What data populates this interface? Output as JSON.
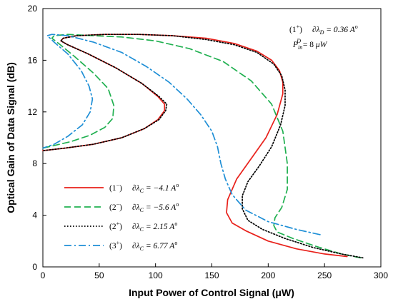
{
  "chart_data": {
    "type": "line",
    "title": "",
    "xlabel": "Input Power of Control Signal (μW)",
    "ylabel": "Optical Gain of Data Signal (dB)",
    "xlim": [
      0,
      300
    ],
    "ylim": [
      0,
      20
    ],
    "x_ticks": [
      "0",
      "50",
      "100",
      "150",
      "200",
      "250",
      "300"
    ],
    "y_ticks": [
      "0",
      "4",
      "8",
      "12",
      "16",
      "20"
    ],
    "grid": false,
    "legend_position": "bottom-left",
    "annotation": {
      "line1": "(1⁺)   ∂λ_D = 0.36 A°",
      "line2": "P_in^D = 8 μW"
    },
    "series": [
      {
        "name": "(1⁻)   ∂λ_C = −4.1 A°",
        "color": "#e8201a",
        "style": "solid",
        "x": [
          270,
          250,
          225,
          200,
          180,
          168,
          163,
          164,
          172,
          185,
          198,
          208,
          213,
          213,
          210,
          203,
          190,
          170,
          145,
          115,
          85,
          55,
          30,
          18,
          16,
          22,
          40,
          65,
          88,
          102,
          108,
          108,
          102,
          90,
          70,
          45,
          20,
          0
        ],
        "y": [
          0.8,
          1.0,
          1.4,
          2.0,
          2.8,
          3.4,
          4.2,
          5.2,
          6.8,
          8.4,
          10.0,
          11.8,
          13.4,
          14.3,
          15.2,
          16.0,
          16.7,
          17.3,
          17.7,
          17.9,
          18.0,
          18.0,
          17.9,
          17.7,
          17.5,
          17.2,
          16.5,
          15.4,
          14.2,
          13.2,
          12.6,
          12.1,
          11.4,
          10.7,
          10.0,
          9.5,
          9.2,
          9.0
        ]
      },
      {
        "name": "(2⁻)   ∂λ_C = −5.6 A°",
        "color": "#20b050",
        "style": "dash",
        "x": [
          282,
          265,
          242,
          222,
          208,
          205,
          206,
          212,
          217,
          217,
          213,
          203,
          185,
          160,
          130,
          100,
          70,
          45,
          22,
          10,
          8,
          14,
          28,
          45,
          58,
          63,
          62,
          55,
          42,
          25,
          10,
          0
        ],
        "y": [
          0.7,
          1.0,
          1.6,
          2.2,
          2.7,
          3.2,
          3.8,
          4.6,
          6.0,
          8.0,
          10.5,
          12.6,
          14.4,
          15.9,
          16.9,
          17.5,
          17.8,
          17.9,
          18.0,
          17.9,
          17.7,
          17.3,
          16.3,
          15.0,
          13.8,
          12.5,
          11.5,
          10.8,
          10.2,
          9.7,
          9.4,
          9.2
        ]
      },
      {
        "name": "(2⁺)   ∂λ_C = 2.15 A°",
        "color": "#000000",
        "style": "dot",
        "x": [
          284,
          265,
          240,
          215,
          195,
          182,
          177,
          177,
          182,
          192,
          203,
          211,
          215,
          215,
          212,
          205,
          190,
          170,
          145,
          115,
          85,
          55,
          30,
          18,
          16,
          22,
          40,
          65,
          88,
          103,
          110,
          109,
          103,
          90,
          70,
          45,
          20,
          0
        ],
        "y": [
          0.7,
          1.0,
          1.5,
          2.2,
          2.9,
          3.6,
          4.5,
          5.5,
          6.6,
          7.8,
          9.3,
          11.0,
          12.5,
          13.7,
          14.8,
          15.7,
          16.6,
          17.2,
          17.6,
          17.9,
          18.0,
          18.0,
          17.9,
          17.7,
          17.5,
          17.2,
          16.5,
          15.4,
          14.2,
          13.2,
          12.6,
          12.1,
          11.4,
          10.7,
          10.0,
          9.5,
          9.2,
          9.0
        ]
      },
      {
        "name": "(3⁺)   ∂λ_C = 6.77 A°",
        "color": "#1f8fd6",
        "style": "dashdot",
        "x": [
          246,
          225,
          200,
          180,
          168,
          162,
          158,
          155,
          150,
          140,
          128,
          112,
          92,
          70,
          45,
          22,
          8,
          4,
          10,
          22,
          34,
          41,
          44,
          42,
          35,
          22,
          10,
          0
        ],
        "y": [
          2.5,
          2.9,
          3.5,
          4.4,
          5.6,
          6.8,
          8.0,
          9.3,
          10.5,
          11.8,
          13.0,
          14.3,
          15.5,
          16.6,
          17.4,
          17.9,
          18.0,
          17.9,
          17.4,
          16.5,
          15.2,
          14.0,
          13.0,
          12.0,
          11.0,
          10.1,
          9.5,
          9.2
        ]
      }
    ]
  }
}
